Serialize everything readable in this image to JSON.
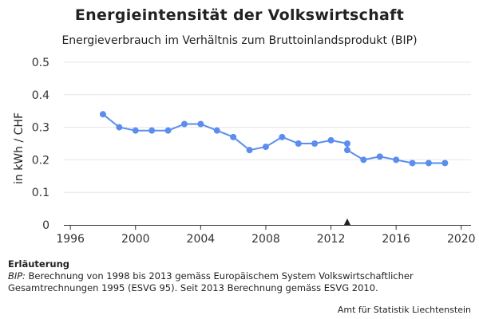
{
  "chart_data": {
    "type": "line",
    "title": "Energieintensität der Volkswirtschaft",
    "subtitle": "Energieverbrauch im Verhältnis zum Bruttoinlandsprodukt (BIP)",
    "ylabel": "in kWh / CHF",
    "xlabel": "",
    "xlim": [
      1995.6,
      2020.6
    ],
    "ylim": [
      0,
      0.5
    ],
    "x_ticks": [
      1996,
      2000,
      2004,
      2008,
      2012,
      2016,
      2020
    ],
    "y_ticks": [
      0,
      0.1,
      0.2,
      0.3,
      0.4,
      0.5
    ],
    "x_tick_labels": [
      "1996",
      "2000",
      "2004",
      "2008",
      "2012",
      "2016",
      "2020"
    ],
    "y_tick_labels": [
      "0",
      "0.1",
      "0.2",
      "0.3",
      "0.4",
      "0.5"
    ],
    "grid": true,
    "color": "#5b8def",
    "marker": {
      "x": 2013,
      "symbol": "▲"
    },
    "series": [
      {
        "points": [
          [
            1998,
            0.34
          ],
          [
            1999,
            0.3
          ],
          [
            2000,
            0.29
          ],
          [
            2001,
            0.29
          ],
          [
            2002,
            0.29
          ],
          [
            2003,
            0.31
          ],
          [
            2004,
            0.31
          ],
          [
            2005,
            0.29
          ],
          [
            2006,
            0.27
          ],
          [
            2007,
            0.23
          ],
          [
            2008,
            0.24
          ],
          [
            2009,
            0.27
          ],
          [
            2010,
            0.25
          ],
          [
            2011,
            0.25
          ],
          [
            2012,
            0.26
          ],
          [
            2013,
            0.25
          ],
          [
            2013,
            0.23
          ],
          [
            2014,
            0.2
          ],
          [
            2015,
            0.21
          ],
          [
            2016,
            0.2
          ],
          [
            2017,
            0.19
          ],
          [
            2018,
            0.19
          ],
          [
            2019,
            0.19
          ]
        ]
      }
    ]
  },
  "notes": {
    "heading": "Erläuterung",
    "label": "BIP:",
    "text": " Berechnung von 1998 bis 2013 gemäss Europäischem System Volkswirtschaftlicher Gesamtrechnungen 1995 (ESVG 95). Seit 2013 Berechnung gemäss ESVG 2010."
  },
  "credit": "Amt für Statistik Liechtenstein"
}
